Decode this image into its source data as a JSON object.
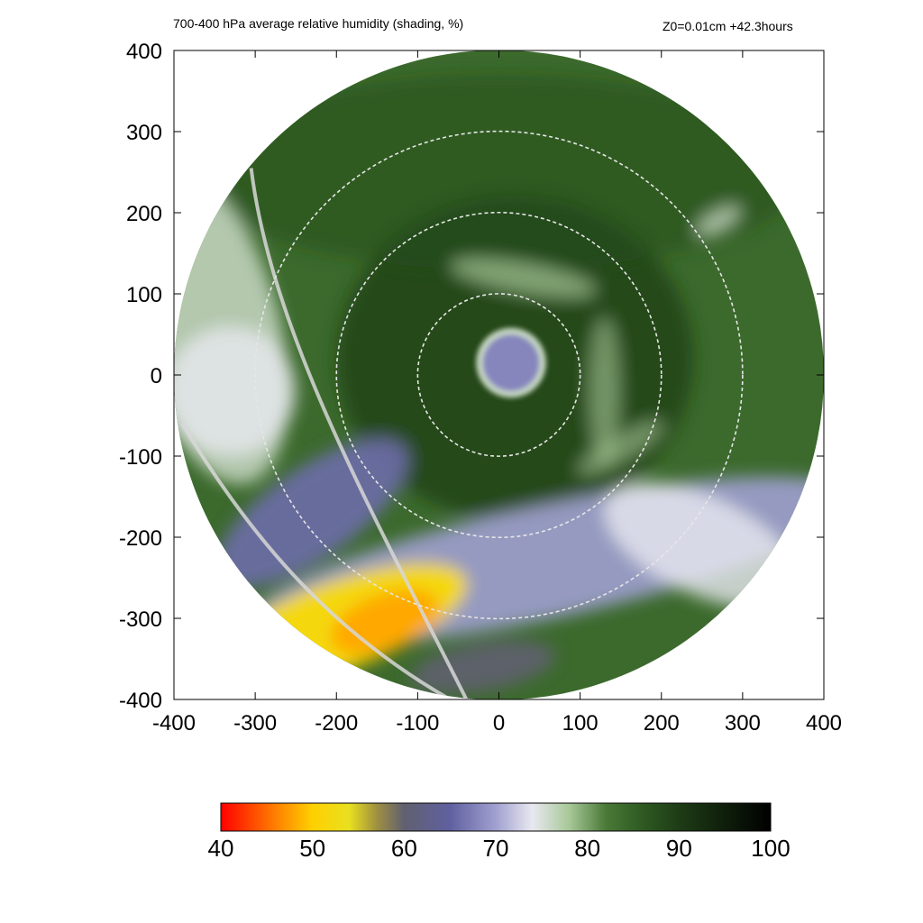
{
  "title_left": "700-400 hPa average relative humidity (shading, %)",
  "title_right": "Z0=0.01cm  +42.3hours",
  "chart_data": {
    "type": "heatmap",
    "title": "700-400 hPa average relative humidity (shading, %)",
    "annotation": "Z0=0.01cm  +42.3hours",
    "xlim": [
      -400,
      400
    ],
    "ylim": [
      -400,
      400
    ],
    "x_ticks": [
      -400,
      -300,
      -200,
      -100,
      0,
      100,
      200,
      300,
      400
    ],
    "y_ticks": [
      -400,
      -300,
      -200,
      -100,
      0,
      100,
      200,
      300,
      400
    ],
    "x_tick_labels": [
      "-400",
      "-300",
      "-200",
      "-100",
      "0",
      "100",
      "200",
      "300",
      "400"
    ],
    "y_tick_labels": [
      "-400",
      "-300",
      "-200",
      "-100",
      "0",
      "100",
      "200",
      "300",
      "400"
    ],
    "domain_radius": 400,
    "eye_center": [
      15,
      15
    ],
    "eye_radius": 35,
    "range_rings": [
      100,
      200,
      300
    ],
    "grid": false,
    "colorbar": {
      "min": 40,
      "max": 100,
      "ticks": [
        40,
        50,
        60,
        70,
        80,
        90,
        100
      ],
      "tick_labels": [
        "40",
        "50",
        "60",
        "70",
        "80",
        "90",
        "100"
      ],
      "stops": [
        {
          "value": 40,
          "color": "#ff0000"
        },
        {
          "value": 46,
          "color": "#ff8000"
        },
        {
          "value": 50,
          "color": "#ffd000"
        },
        {
          "value": 54,
          "color": "#e8e020"
        },
        {
          "value": 57,
          "color": "#a09040"
        },
        {
          "value": 60,
          "color": "#606070"
        },
        {
          "value": 65,
          "color": "#6060a0"
        },
        {
          "value": 70,
          "color": "#a0a0d0"
        },
        {
          "value": 74,
          "color": "#e8e8f0"
        },
        {
          "value": 78,
          "color": "#a8c898"
        },
        {
          "value": 82,
          "color": "#4a7a38"
        },
        {
          "value": 86,
          "color": "#2e5a22"
        },
        {
          "value": 90,
          "color": "#1e3c16"
        },
        {
          "value": 100,
          "color": "#000000"
        }
      ]
    },
    "regions": [
      {
        "feature": "eye",
        "rh": 68
      },
      {
        "feature": "eyewall",
        "rh": 76
      },
      {
        "feature": "main_field",
        "rh": 84
      },
      {
        "feature": "dry_slot_southwest",
        "rh": 52
      },
      {
        "feature": "dry_core",
        "rh": 48
      },
      {
        "feature": "moist_band_south",
        "rh": 70
      },
      {
        "feature": "west_edge",
        "rh": 76
      }
    ]
  }
}
